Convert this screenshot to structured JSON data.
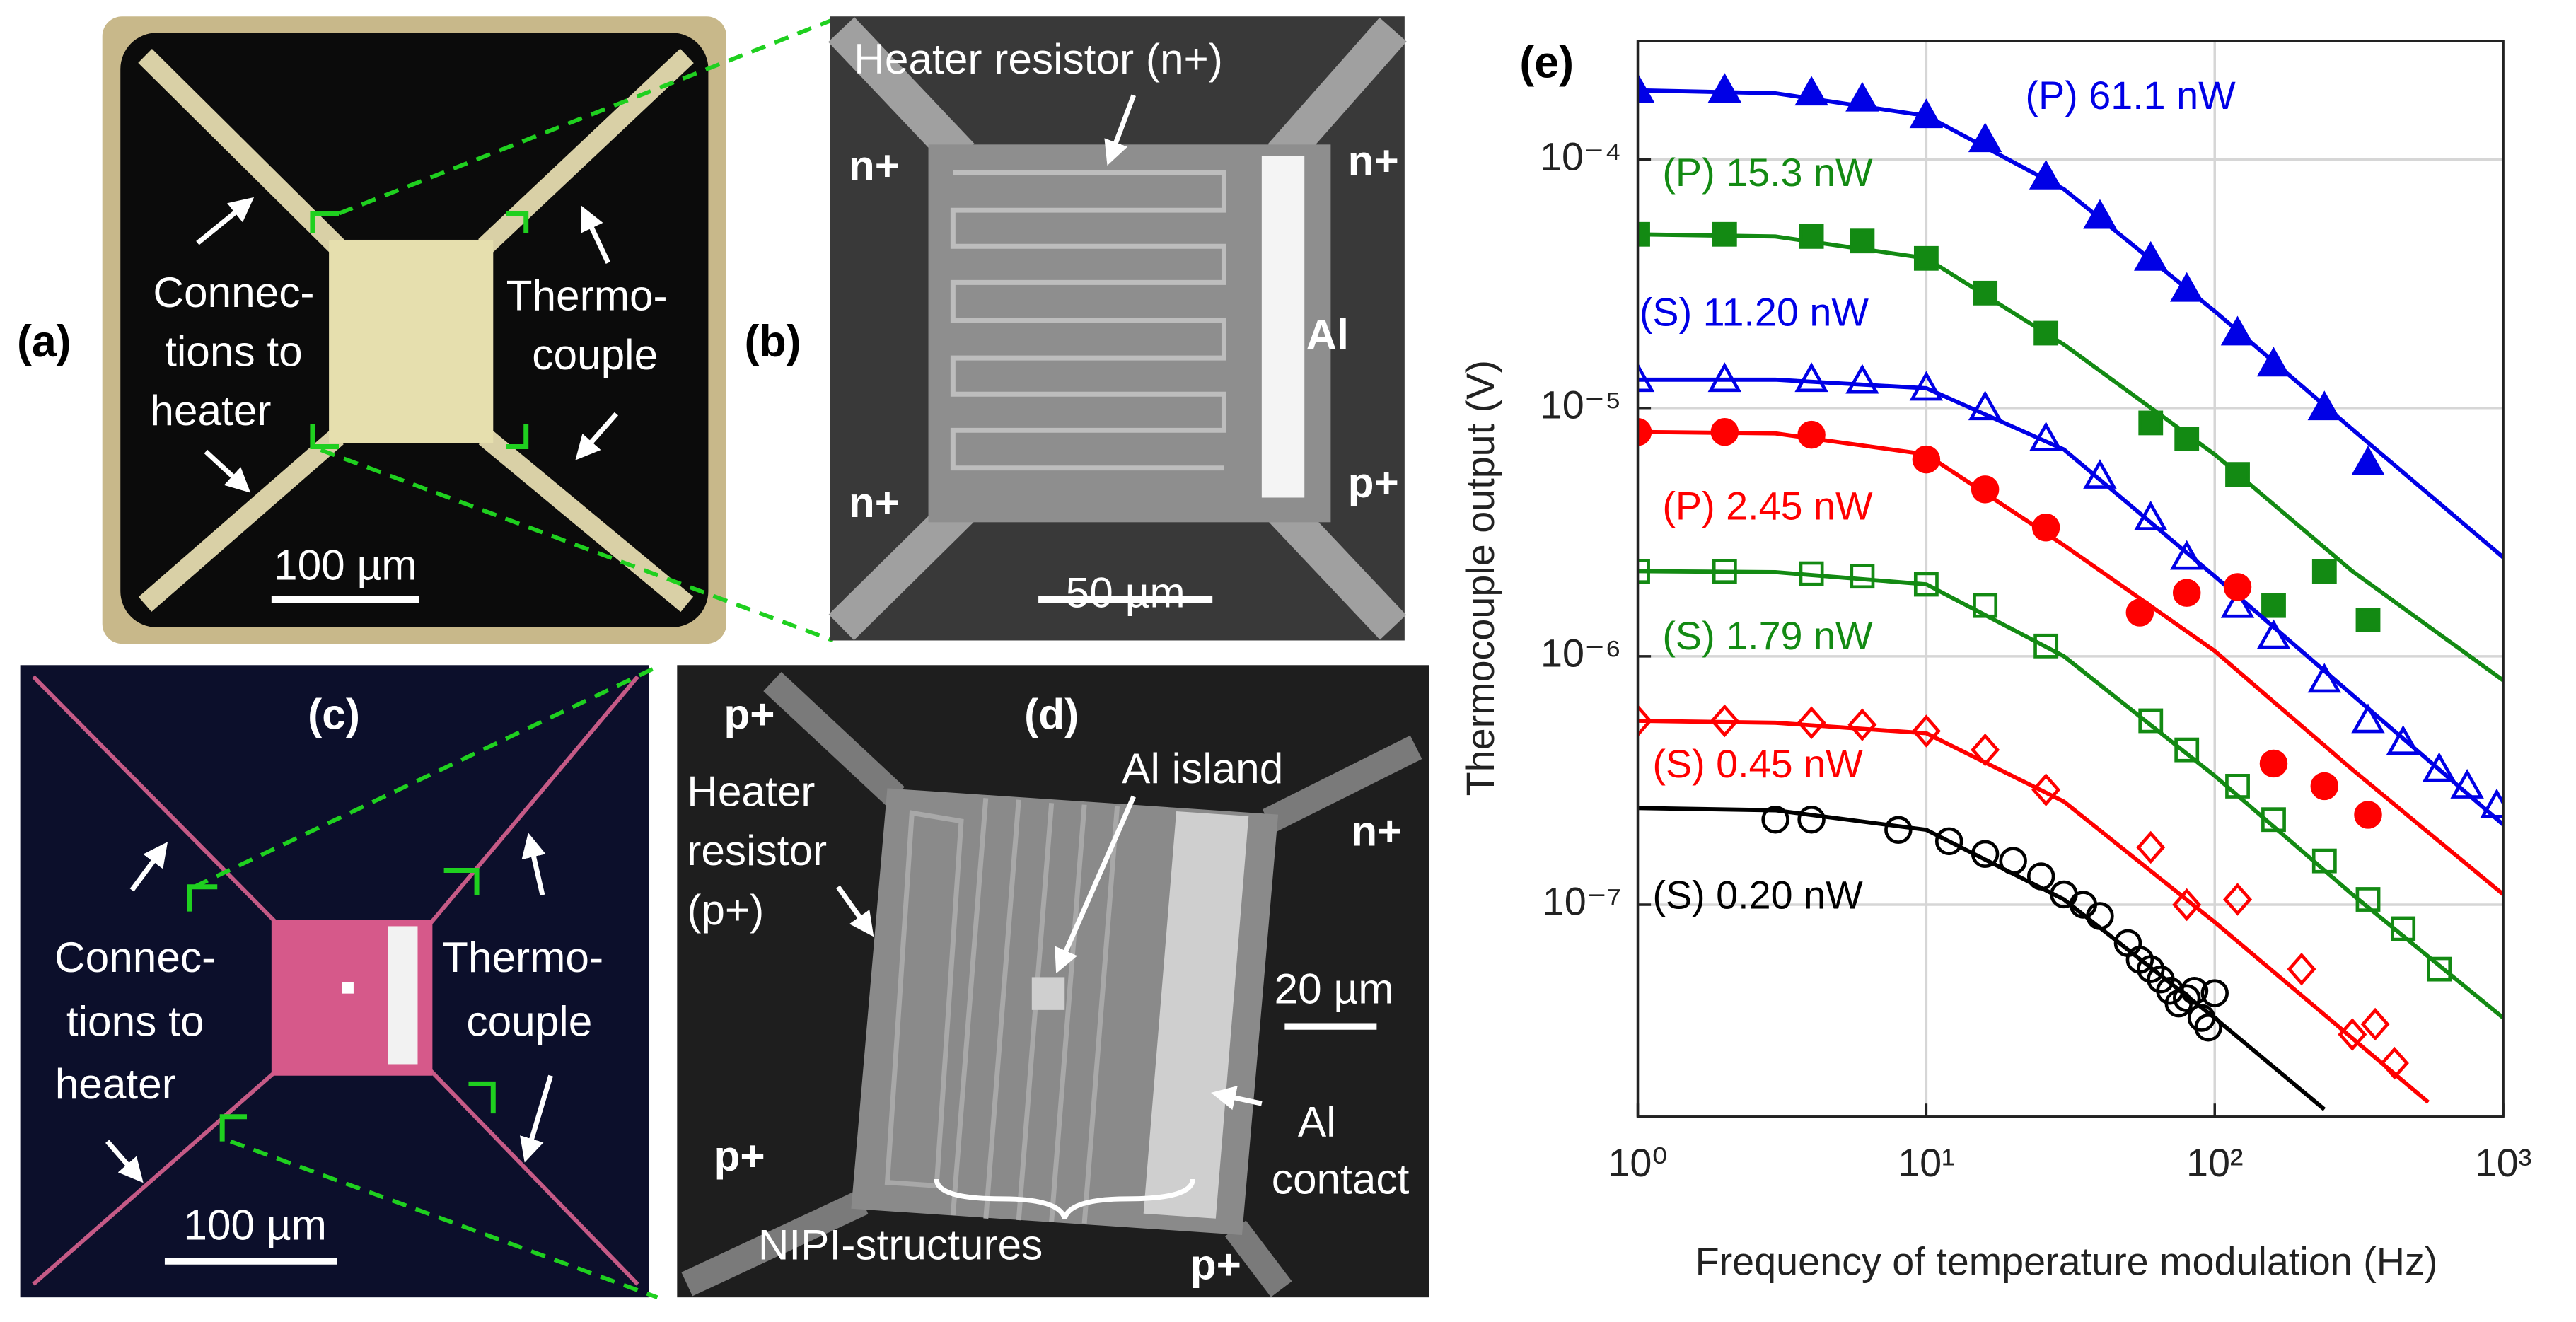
{
  "panels": {
    "a": {
      "label": "(a)",
      "connections": [
        "Connec-",
        "tions to",
        "heater"
      ],
      "thermocouple": [
        "Thermo-",
        "couple"
      ],
      "scale": "100 µm"
    },
    "b": {
      "label": "(b)",
      "heater": "Heater resistor (n+)",
      "contacts": [
        "n+",
        "n+",
        "n+",
        "p+"
      ],
      "al": "Al",
      "scale": "50 µm"
    },
    "c": {
      "label": "(c)",
      "connections": [
        "Connec-",
        "tions to",
        "heater"
      ],
      "thermocouple": [
        "Thermo-",
        "couple"
      ],
      "scale": "100 µm"
    },
    "d": {
      "label": "(d)",
      "contacts": [
        "p+",
        "n+",
        "p+",
        "p+"
      ],
      "heater": [
        "Heater",
        "resistor",
        "(p+)"
      ],
      "island": "Al island",
      "scale": "20 µm",
      "contact": [
        "Al",
        "contact"
      ],
      "nipi": "NIPI-structures"
    }
  },
  "chart_data": {
    "type": "scatter",
    "panel_label": "(e)",
    "xlabel": "Frequency of temperature modulation (Hz)",
    "ylabel": "Thermocouple output (V)",
    "xscale": "log",
    "yscale": "log",
    "grid": true,
    "xlim": [
      1,
      1000
    ],
    "ylim": [
      1.4e-08,
      0.0003
    ],
    "xticks": [
      {
        "value": 1,
        "label": "10⁰"
      },
      {
        "value": 10,
        "label": "10¹"
      },
      {
        "value": 100,
        "label": "10²"
      },
      {
        "value": 1000,
        "label": "10³"
      }
    ],
    "yticks": [
      {
        "value": 1e-07,
        "label": "10⁻⁷"
      },
      {
        "value": 1e-06,
        "label": "10⁻⁶"
      },
      {
        "value": 1e-05,
        "label": "10⁻⁵"
      },
      {
        "value": 0.0001,
        "label": "10⁻⁴"
      }
    ],
    "series": [
      {
        "name": "(P) 61.1 nW",
        "color": "#0000e6",
        "marker": "triangle",
        "filled": true,
        "x": [
          1,
          2,
          4,
          6,
          10,
          16,
          26,
          40,
          60,
          80,
          120,
          160,
          240,
          340
        ],
        "values": [
          0.00019,
          0.00019,
          0.000185,
          0.000175,
          0.00015,
          0.00012,
          8.5e-05,
          5.9e-05,
          4e-05,
          3e-05,
          2e-05,
          1.5e-05,
          1e-05,
          6e-06
        ],
        "fit": {
          "x": [
            1,
            3,
            10,
            30,
            100,
            300,
            1000
          ],
          "values": [
            0.00019,
            0.000185,
            0.00015,
            7.6e-05,
            2.45e-05,
            8.2e-06,
            2.5e-06
          ]
        }
      },
      {
        "name": "(P) 15.3 nW",
        "color": "#138a13",
        "marker": "square",
        "filled": true,
        "x": [
          1,
          2,
          4,
          6,
          10,
          16,
          26,
          60,
          80,
          120,
          160,
          240,
          340
        ],
        "values": [
          5e-05,
          5e-05,
          4.9e-05,
          4.7e-05,
          4e-05,
          2.9e-05,
          2e-05,
          8.7e-06,
          7.5e-06,
          5.4e-06,
          1.6e-06,
          2.2e-06,
          1.4e-06
        ],
        "fit": {
          "x": [
            1,
            3,
            10,
            30,
            100,
            300,
            1000
          ],
          "values": [
            5e-05,
            4.9e-05,
            4e-05,
            1.8e-05,
            6.5e-06,
            2.2e-06,
            8e-07
          ]
        }
      },
      {
        "name": "(S) 11.20 nW",
        "color": "#0000e6",
        "marker": "triangle",
        "filled": false,
        "x": [
          1,
          2,
          4,
          6,
          10,
          16,
          26,
          40,
          60,
          80,
          120,
          160,
          240,
          340,
          450,
          600,
          750,
          950
        ],
        "values": [
          1.3e-05,
          1.3e-05,
          1.3e-05,
          1.28e-05,
          1.2e-05,
          1e-05,
          7.5e-06,
          5.3e-06,
          3.6e-06,
          2.5e-06,
          1.6e-06,
          1.2e-06,
          8e-07,
          5.5e-07,
          4.5e-07,
          3.5e-07,
          3e-07,
          2.5e-07
        ],
        "fit": {
          "x": [
            1,
            3,
            10,
            30,
            100,
            300,
            1000
          ],
          "values": [
            1.3e-05,
            1.3e-05,
            1.2e-05,
            6.8e-06,
            2.1e-06,
            7e-07,
            2.1e-07
          ]
        }
      },
      {
        "name": "(P) 2.45 nW",
        "color": "#ff0000",
        "marker": "circle",
        "filled": true,
        "x": [
          1,
          2,
          4,
          10,
          16,
          26,
          55,
          80,
          120,
          160,
          240,
          340
        ],
        "values": [
          8e-06,
          8e-06,
          7.8e-06,
          6.2e-06,
          4.7e-06,
          3.3e-06,
          1.5e-06,
          1.8e-06,
          1.9e-06,
          3.7e-07,
          3e-07,
          2.3e-07
        ],
        "fit": {
          "x": [
            1,
            3,
            10,
            30,
            100,
            300,
            1000
          ],
          "values": [
            8e-06,
            7.9e-06,
            6.5e-06,
            2.8e-06,
            1.05e-06,
            3.5e-07,
            1.1e-07
          ]
        }
      },
      {
        "name": "(S) 1.79 nW",
        "color": "#138a13",
        "marker": "square",
        "filled": false,
        "x": [
          1,
          2,
          4,
          6,
          10,
          16,
          26,
          60,
          80,
          120,
          160,
          240,
          340,
          450,
          600
        ],
        "values": [
          2.2e-06,
          2.2e-06,
          2.15e-06,
          2.1e-06,
          1.95e-06,
          1.6e-06,
          1.1e-06,
          5.5e-07,
          4.2e-07,
          3e-07,
          2.2e-07,
          1.5e-07,
          1.05e-07,
          8e-08,
          5.5e-08
        ],
        "fit": {
          "x": [
            1,
            3,
            10,
            30,
            100,
            300,
            1000
          ],
          "values": [
            2.2e-06,
            2.18e-06,
            1.95e-06,
            1e-06,
            3.3e-07,
            1.1e-07,
            3.5e-08
          ]
        }
      },
      {
        "name": "(S) 0.45 nW",
        "color": "#ff0000",
        "marker": "diamond",
        "filled": false,
        "x": [
          1,
          2,
          4,
          6,
          10,
          16,
          26,
          60,
          80,
          120,
          200,
          300,
          360,
          420
        ],
        "values": [
          5.5e-07,
          5.5e-07,
          5.4e-07,
          5.3e-07,
          5e-07,
          4.2e-07,
          2.9e-07,
          1.7e-07,
          1e-07,
          1.05e-07,
          5.5e-08,
          3e-08,
          3.3e-08,
          2.3e-08
        ],
        "fit": {
          "x": [
            1,
            3,
            10,
            30,
            100,
            300,
            550
          ],
          "values": [
            5.5e-07,
            5.4e-07,
            4.9e-07,
            2.6e-07,
            8.5e-08,
            2.9e-08,
            1.6e-08
          ]
        }
      },
      {
        "name": "(S) 0.20 nW",
        "color": "#000000",
        "marker": "circle",
        "filled": false,
        "x": [
          3,
          4,
          8,
          12,
          16,
          20,
          25,
          30,
          35,
          40,
          50,
          55,
          60,
          65,
          70,
          75,
          80,
          85,
          90,
          95,
          100
        ],
        "values": [
          2.2e-07,
          2.2e-07,
          2e-07,
          1.8e-07,
          1.6e-07,
          1.5e-07,
          1.3e-07,
          1.1e-07,
          1e-07,
          9e-08,
          7e-08,
          6e-08,
          5.5e-08,
          5e-08,
          4.5e-08,
          4e-08,
          4.2e-08,
          4.5e-08,
          3.5e-08,
          3.2e-08,
          4.4e-08
        ],
        "fit": {
          "x": [
            1,
            3,
            10,
            30,
            100,
            240
          ],
          "values": [
            2.45e-07,
            2.4e-07,
            2e-07,
            1.05e-07,
            3.5e-08,
            1.5e-08
          ]
        }
      }
    ]
  }
}
